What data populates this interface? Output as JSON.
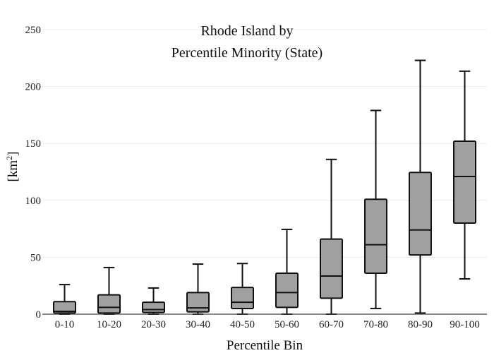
{
  "chart_data": {
    "type": "box",
    "title_lines": [
      "Rhode Island  by",
      "Percentile Minority (State)"
    ],
    "xlabel": "Percentile Bin",
    "ylabel": "[km",
    "ylabel_sup": "2",
    "ylabel_close": "]",
    "ylim": [
      0,
      250
    ],
    "yticks": [
      0,
      50,
      100,
      150,
      200,
      250
    ],
    "grid": true,
    "legend": "none",
    "box_color": "#a0a0a0",
    "line_color": "#111111",
    "categories": [
      "0-10",
      "10-20",
      "20-30",
      "30-40",
      "40-50",
      "50-60",
      "60-70",
      "70-80",
      "80-90",
      "90-100"
    ],
    "boxes": [
      {
        "min": 0,
        "q1": 1,
        "median": 2.5,
        "q3": 11,
        "max": 26
      },
      {
        "min": 0,
        "q1": 1,
        "median": 6,
        "q3": 17,
        "max": 41
      },
      {
        "min": 0,
        "q1": 1.5,
        "median": 4,
        "q3": 10.5,
        "max": 23
      },
      {
        "min": 0,
        "q1": 2,
        "median": 5.5,
        "q3": 19,
        "max": 44
      },
      {
        "min": 0,
        "q1": 5,
        "median": 10.5,
        "q3": 23.5,
        "max": 44.5
      },
      {
        "min": 0,
        "q1": 6,
        "median": 19,
        "q3": 36,
        "max": 74.5
      },
      {
        "min": 0,
        "q1": 14,
        "median": 33.5,
        "q3": 66,
        "max": 136
      },
      {
        "min": 5,
        "q1": 36,
        "median": 61,
        "q3": 101,
        "max": 179
      },
      {
        "min": 1,
        "q1": 52,
        "median": 74,
        "q3": 124.5,
        "max": 223
      },
      {
        "min": 31,
        "q1": 80,
        "median": 121,
        "q3": 152,
        "max": 213.5
      }
    ]
  }
}
